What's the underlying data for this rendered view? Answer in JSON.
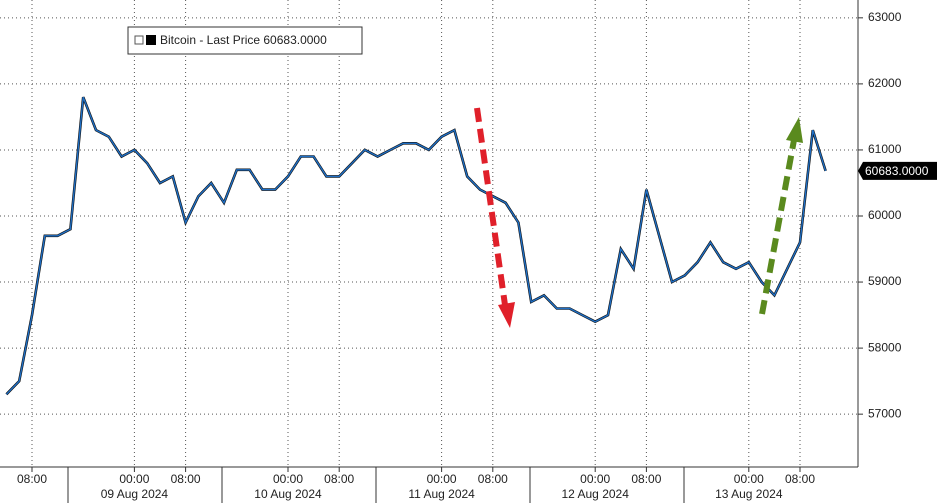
{
  "chart_data": {
    "type": "line",
    "series": [
      {
        "name": "Bitcoin - Last Price 60683.0000",
        "color": "#1f6fc5",
        "values": [
          57300,
          57500,
          58500,
          59700,
          59700,
          59800,
          61800,
          61300,
          61200,
          60900,
          61000,
          60800,
          60500,
          60600,
          59900,
          60300,
          60500,
          60200,
          60700,
          60700,
          60400,
          60400,
          60600,
          60900,
          60900,
          60600,
          60600,
          60800,
          61000,
          60900,
          61000,
          61100,
          61100,
          61000,
          61200,
          61300,
          60600,
          60400,
          60300,
          60200,
          59900,
          58700,
          58800,
          58600,
          58600,
          58500,
          58400,
          58500,
          59500,
          59200,
          60400,
          59700,
          59000,
          59100,
          59300,
          59600,
          59300,
          59200,
          59300,
          59000,
          58800,
          59200,
          59600,
          61300,
          60683
        ],
        "last_label": "60683.0000"
      }
    ],
    "categories": [
      null,
      null,
      "08:00",
      null,
      null,
      null,
      null,
      null,
      null,
      null,
      "00:00",
      null,
      null,
      null,
      "08:00",
      null,
      null,
      null,
      null,
      null,
      null,
      null,
      "00:00",
      null,
      null,
      null,
      "08:00",
      null,
      null,
      null,
      null,
      null,
      null,
      null,
      "00:00",
      null,
      null,
      null,
      "08:00",
      null,
      null,
      null,
      null,
      null,
      null,
      null,
      "00:00",
      null,
      null,
      null,
      "08:00",
      null,
      null,
      null,
      null,
      null,
      null,
      null,
      "00:00",
      null,
      null,
      null,
      "08:00",
      null,
      null
    ],
    "dates": [
      null,
      null,
      null,
      null,
      null,
      null,
      null,
      null,
      null,
      null,
      "09 Aug 2024",
      null,
      null,
      null,
      null,
      null,
      null,
      null,
      null,
      null,
      null,
      null,
      "10 Aug 2024",
      null,
      null,
      null,
      null,
      null,
      null,
      null,
      null,
      null,
      null,
      null,
      "11 Aug 2024",
      null,
      null,
      null,
      null,
      null,
      null,
      null,
      null,
      null,
      null,
      null,
      "12 Aug 2024",
      null,
      null,
      null,
      null,
      null,
      null,
      null,
      null,
      null,
      null,
      null,
      "13 Aug 2024",
      null,
      null,
      null,
      null,
      null,
      null
    ],
    "ylim": [
      56200,
      63270
    ],
    "yticks": [
      57000,
      58000,
      59000,
      60000,
      61000,
      62000,
      63000
    ],
    "grid": true
  }
}
